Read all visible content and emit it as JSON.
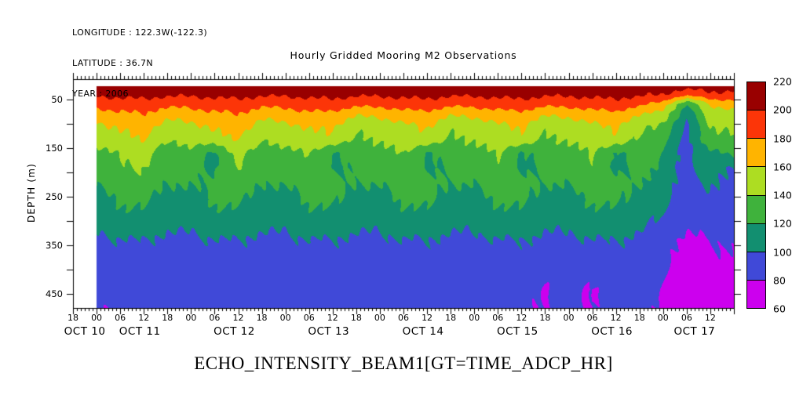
{
  "header": {
    "longitude": "LONGITUDE : 122.3W(-122.3)",
    "latitude": "LATITUDE : 36.7N",
    "year": "YEAR : 2006"
  },
  "title": "Hourly Gridded Mooring M2 Observations",
  "footer": "ECHO_INTENSITY_BEAM1[GT=TIME_ADCP_HR]",
  "colorbar": {
    "labels": [
      "220",
      "200",
      "180",
      "160",
      "140",
      "120",
      "100",
      "80",
      "60"
    ]
  },
  "chart_data": {
    "type": "heatmap",
    "title": "Hourly Gridded Mooring M2 Observations",
    "variable": "ECHO_INTENSITY_BEAM1[GT=TIME_ADCP_HR]",
    "xlabel": "",
    "ylabel": "DEPTH (m)",
    "y_axis": {
      "min": 8,
      "max": 479,
      "tick_step": 50,
      "labeled_ticks": [
        50,
        150,
        250,
        350,
        450
      ]
    },
    "x_axis": {
      "start": "OCT 10 18:00",
      "hours_total": 168,
      "minor_tick_hours": 1,
      "major_tick_hours": 6,
      "hour_label_step": 6,
      "hour_labels": [
        "18",
        "00",
        "06",
        "12",
        "18",
        "00",
        "06",
        "12",
        "18",
        "00",
        "06",
        "12",
        "18",
        "00",
        "06",
        "12",
        "18",
        "00",
        "06",
        "12",
        "18",
        "00",
        "06",
        "12",
        "18",
        "00",
        "06",
        "12"
      ],
      "date_labels": [
        {
          "text": "OCT 10",
          "hour": 3
        },
        {
          "text": "OCT 11",
          "hour": 17
        },
        {
          "text": "OCT 12",
          "hour": 41
        },
        {
          "text": "OCT 13",
          "hour": 65
        },
        {
          "text": "OCT 14",
          "hour": 89
        },
        {
          "text": "OCT 15",
          "hour": 113
        },
        {
          "text": "OCT 16",
          "hour": 137
        },
        {
          "text": "OCT 17",
          "hour": 158
        }
      ]
    },
    "levels": [
      60,
      80,
      100,
      120,
      140,
      160,
      180,
      200,
      220
    ],
    "level_colors": [
      "#cc00ee",
      "#4049d8",
      "#128f70",
      "#3fb23c",
      "#addd22",
      "#ffb400",
      "#fc3508",
      "#990000"
    ],
    "grid": {
      "hours": [
        6,
        12,
        18,
        24,
        30,
        36,
        42,
        48,
        54,
        60,
        66,
        72,
        78,
        84,
        90,
        96,
        102,
        108,
        114,
        120,
        126,
        132,
        138,
        144,
        150,
        156,
        162,
        168
      ],
      "depths": [
        22,
        40,
        60,
        80,
        105,
        130,
        160,
        190,
        220,
        250,
        280,
        310,
        340,
        370,
        400,
        440,
        479
      ],
      "values": [
        [
          211,
          213,
          213,
          211,
          211,
          213,
          213,
          211,
          211,
          213,
          213,
          211,
          211,
          213,
          213,
          211,
          211,
          213,
          213,
          211,
          211,
          213,
          213,
          211,
          210,
          208,
          209,
          208
        ],
        [
          203,
          205,
          206,
          203,
          203,
          205,
          206,
          203,
          203,
          205,
          206,
          203,
          203,
          205,
          206,
          203,
          203,
          205,
          206,
          203,
          203,
          205,
          206,
          203,
          200,
          186,
          196,
          194
        ],
        [
          186,
          190,
          192,
          185,
          186,
          190,
          192,
          185,
          186,
          190,
          192,
          185,
          186,
          190,
          192,
          185,
          186,
          190,
          192,
          185,
          186,
          190,
          192,
          185,
          170,
          120,
          160,
          172
        ],
        [
          170,
          177,
          179,
          168,
          170,
          177,
          179,
          168,
          170,
          177,
          174,
          163,
          165,
          172,
          174,
          163,
          165,
          172,
          174,
          163,
          165,
          172,
          174,
          163,
          150,
          108,
          148,
          152
        ],
        [
          154,
          164,
          168,
          152,
          154,
          164,
          168,
          152,
          154,
          164,
          161,
          145,
          147,
          157,
          161,
          145,
          147,
          157,
          161,
          145,
          147,
          157,
          161,
          145,
          135,
          98,
          140,
          146
        ],
        [
          146,
          156,
          160,
          144,
          146,
          156,
          160,
          144,
          146,
          156,
          155,
          139,
          141,
          151,
          155,
          139,
          141,
          151,
          155,
          139,
          141,
          151,
          155,
          139,
          128,
          95,
          135,
          138
        ],
        [
          133,
          143,
          147,
          131,
          133,
          118,
          147,
          131,
          133,
          143,
          117,
          131,
          133,
          143,
          117,
          131,
          133,
          143,
          117,
          131,
          133,
          143,
          117,
          131,
          120,
          93,
          115,
          126
        ],
        [
          127,
          137,
          141,
          125,
          127,
          117,
          141,
          125,
          127,
          137,
          116,
          125,
          127,
          137,
          116,
          125,
          127,
          137,
          116,
          125,
          127,
          137,
          116,
          125,
          116,
          92,
          110,
          98
        ],
        [
          122,
          131,
          134,
          120,
          122,
          124,
          134,
          120,
          122,
          131,
          128,
          120,
          122,
          131,
          128,
          120,
          122,
          131,
          128,
          120,
          122,
          131,
          128,
          120,
          112,
          90,
          105,
          94
        ],
        [
          115,
          123,
          126,
          113,
          115,
          123,
          126,
          113,
          115,
          123,
          126,
          113,
          115,
          123,
          126,
          113,
          115,
          123,
          126,
          113,
          115,
          123,
          126,
          113,
          108,
          88,
          100,
          92
        ],
        [
          110,
          117,
          119,
          108,
          110,
          117,
          119,
          108,
          110,
          117,
          119,
          108,
          110,
          117,
          119,
          108,
          110,
          117,
          119,
          108,
          110,
          117,
          119,
          108,
          104,
          87,
          96,
          90
        ],
        [
          104,
          109,
          111,
          103,
          104,
          109,
          111,
          103,
          104,
          109,
          111,
          103,
          104,
          109,
          111,
          103,
          104,
          109,
          111,
          103,
          104,
          109,
          111,
          103,
          96,
          84,
          88,
          88
        ],
        [
          96,
          99,
          100,
          95,
          96,
          99,
          100,
          95,
          96,
          99,
          100,
          95,
          96,
          99,
          100,
          95,
          96,
          99,
          100,
          95,
          96,
          99,
          100,
          95,
          85,
          76,
          79,
          84
        ],
        [
          92,
          94,
          95,
          92,
          92,
          94,
          95,
          92,
          92,
          94,
          95,
          92,
          92,
          94,
          95,
          92,
          92,
          94,
          95,
          92,
          92,
          94,
          95,
          92,
          82,
          74,
          76,
          80
        ],
        [
          89,
          91,
          91,
          89,
          89,
          91,
          91,
          89,
          89,
          91,
          91,
          89,
          89,
          91,
          91,
          89,
          89,
          91,
          91,
          89,
          89,
          91,
          91,
          89,
          80,
          73,
          74,
          76
        ],
        [
          88,
          88,
          89,
          87,
          88,
          88,
          89,
          87,
          88,
          88,
          89,
          87,
          88,
          88,
          89,
          87,
          88,
          88,
          89,
          79,
          88,
          79,
          89,
          87,
          78,
          72,
          73,
          75
        ],
        [
          79,
          86,
          87,
          85,
          86,
          86,
          87,
          85,
          86,
          86,
          87,
          85,
          86,
          86,
          87,
          85,
          86,
          86,
          87,
          79,
          86,
          78,
          87,
          85,
          76,
          71,
          72,
          74
        ]
      ]
    }
  }
}
